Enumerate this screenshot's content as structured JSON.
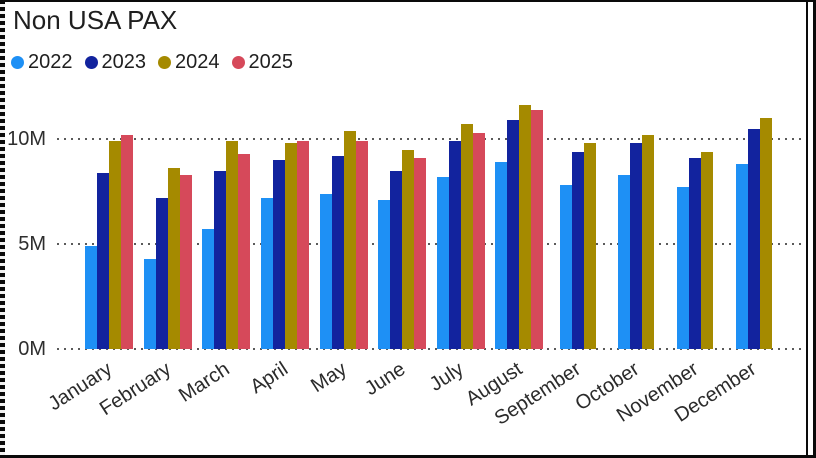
{
  "title": "Non USA PAX",
  "legend_position": "top",
  "colors": {
    "grid_dots": "#5a5a5a",
    "axis_text": "#2e2e2e",
    "title_text": "#1f1f1f",
    "border": "#0a0a0a"
  },
  "chart_data": {
    "type": "bar",
    "title": "Non USA PAX",
    "xlabel": "",
    "ylabel": "",
    "unit": "millions of passengers",
    "ylim": [
      0,
      12
    ],
    "grid": "dotted horizontal",
    "legend_position": "top",
    "y_ticks": [
      {
        "label": "0M",
        "value": 0
      },
      {
        "label": "5M",
        "value": 5
      },
      {
        "label": "10M",
        "value": 10
      }
    ],
    "categories": [
      "January",
      "February",
      "March",
      "April",
      "May",
      "June",
      "July",
      "August",
      "September",
      "October",
      "November",
      "December"
    ],
    "series": [
      {
        "name": "2022",
        "color": "#1E90F5",
        "values": [
          4.9,
          4.3,
          5.7,
          7.2,
          7.4,
          7.1,
          8.2,
          8.9,
          7.8,
          8.3,
          7.7,
          8.8
        ]
      },
      {
        "name": "2023",
        "color": "#12239E",
        "values": [
          8.4,
          7.2,
          8.5,
          9.0,
          9.2,
          8.5,
          9.9,
          10.9,
          9.4,
          9.8,
          9.1,
          10.5
        ]
      },
      {
        "name": "2024",
        "color": "#A58A00",
        "values": [
          9.9,
          8.6,
          9.9,
          9.8,
          10.4,
          9.5,
          10.7,
          11.6,
          9.8,
          10.2,
          9.4,
          11.0
        ]
      },
      {
        "name": "2025",
        "color": "#D6495A",
        "values": [
          10.2,
          8.3,
          9.3,
          9.9,
          9.9,
          9.1,
          10.3,
          11.4,
          null,
          null,
          null,
          null
        ]
      }
    ]
  }
}
